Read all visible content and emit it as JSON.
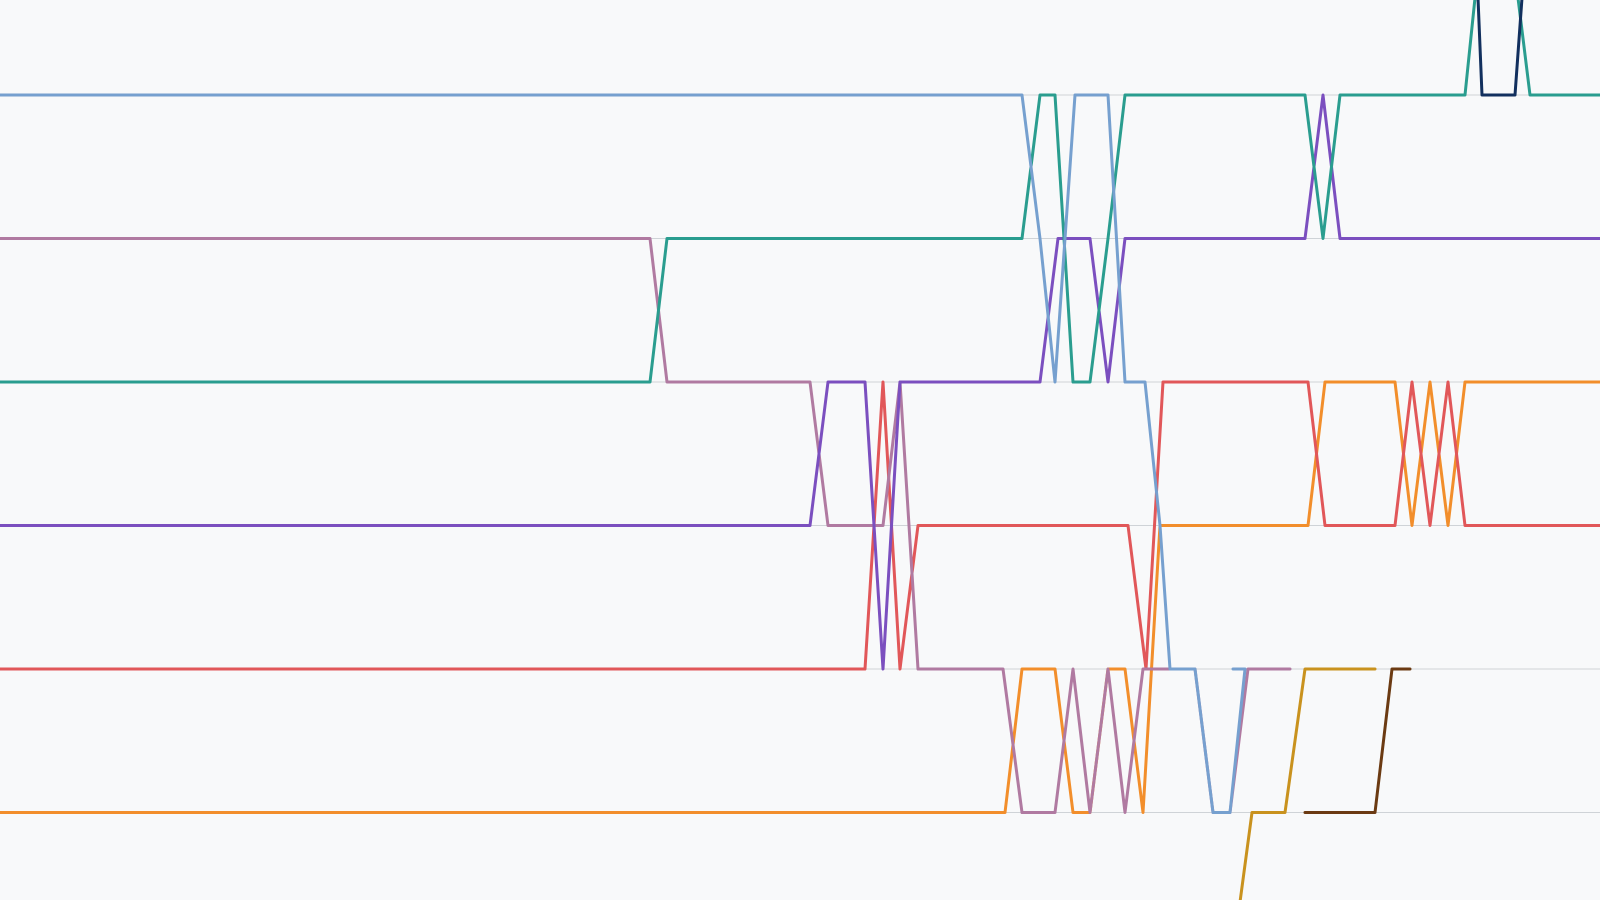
{
  "chart_data": {
    "type": "line",
    "subtype": "bump-chart",
    "x_range": [
      0,
      1600
    ],
    "y_axis": {
      "reversed": true,
      "visible_ranks": [
        1,
        2,
        3,
        4,
        5,
        6,
        7
      ]
    },
    "ylim": [
      0.33,
      7.6
    ],
    "grid": true,
    "legend": "none",
    "title": "",
    "xlabel": "",
    "ylabel": "",
    "series": [
      {
        "color": "#f28e2b",
        "points": [
          [
            0,
            7
          ],
          [
            1005,
            7
          ],
          [
            1022,
            6
          ],
          [
            1055,
            6
          ],
          [
            1073,
            7
          ],
          [
            1090,
            7
          ],
          [
            1108,
            6
          ],
          [
            1125,
            6
          ],
          [
            1143,
            7
          ],
          [
            1160,
            5
          ],
          [
            1308,
            5
          ],
          [
            1325,
            4
          ],
          [
            1395,
            4
          ],
          [
            1412,
            5
          ],
          [
            1430,
            4
          ],
          [
            1448,
            5
          ],
          [
            1465,
            4
          ],
          [
            1600,
            4
          ]
        ]
      },
      {
        "color": "#e15759",
        "points": [
          [
            0,
            6
          ],
          [
            865,
            6
          ],
          [
            883,
            4
          ],
          [
            900,
            6
          ],
          [
            918,
            5
          ],
          [
            1128,
            5
          ],
          [
            1146,
            6
          ],
          [
            1163,
            4
          ],
          [
            1308,
            4
          ],
          [
            1325,
            5
          ],
          [
            1395,
            5
          ],
          [
            1412,
            4
          ],
          [
            1430,
            5
          ],
          [
            1448,
            4
          ],
          [
            1465,
            5
          ],
          [
            1600,
            5
          ]
        ]
      },
      {
        "color": "#b07aa1",
        "points": [
          [
            0,
            3
          ],
          [
            650,
            3
          ],
          [
            667,
            4
          ],
          [
            810,
            4
          ],
          [
            828,
            5
          ],
          [
            883,
            5
          ],
          [
            900,
            4
          ],
          [
            918,
            6
          ],
          [
            1003,
            6
          ],
          [
            1022,
            7
          ],
          [
            1055,
            7
          ],
          [
            1073,
            6
          ],
          [
            1090,
            7
          ],
          [
            1108,
            6
          ],
          [
            1125,
            7
          ],
          [
            1143,
            6
          ],
          [
            1195,
            6
          ],
          [
            1213,
            7
          ],
          [
            1230,
            7
          ],
          [
            1248,
            6
          ],
          [
            1290,
            6
          ]
        ]
      },
      {
        "color": "#7b4fbf",
        "points": [
          [
            0,
            5
          ],
          [
            810,
            5
          ],
          [
            828,
            4
          ],
          [
            865,
            4
          ],
          [
            883,
            6
          ],
          [
            900,
            4
          ],
          [
            918,
            4
          ],
          [
            1040,
            4
          ],
          [
            1058,
            3
          ],
          [
            1090,
            3
          ],
          [
            1108,
            4
          ],
          [
            1125,
            3
          ],
          [
            1305,
            3
          ],
          [
            1323,
            2
          ],
          [
            1340,
            3
          ],
          [
            1600,
            3
          ]
        ]
      },
      {
        "color": "#2a9d8f",
        "points": [
          [
            0,
            4
          ],
          [
            650,
            4
          ],
          [
            667,
            3
          ],
          [
            1022,
            3
          ],
          [
            1040,
            2
          ],
          [
            1055,
            2
          ],
          [
            1073,
            4
          ],
          [
            1090,
            4
          ],
          [
            1108,
            3
          ],
          [
            1125,
            2
          ],
          [
            1305,
            2
          ],
          [
            1323,
            3
          ],
          [
            1340,
            2
          ],
          [
            1465,
            2
          ],
          [
            1475,
            1
          ],
          [
            1518,
            1
          ],
          [
            1530,
            2
          ],
          [
            1600,
            2
          ]
        ]
      },
      {
        "color": "#76a0cf",
        "points": [
          [
            0,
            2
          ],
          [
            1022,
            2
          ],
          [
            1040,
            3
          ],
          [
            1055,
            4
          ],
          [
            1075,
            2
          ],
          [
            1108,
            2
          ],
          [
            1125,
            4
          ],
          [
            1145,
            4
          ],
          [
            1160,
            5
          ],
          [
            1170,
            6
          ],
          [
            1195,
            6
          ],
          [
            1213,
            7
          ],
          [
            1230,
            7
          ],
          [
            1245,
            6
          ],
          [
            1233,
            6
          ]
        ]
      },
      {
        "color": "#12305e",
        "points": [
          [
            1465,
            1
          ],
          [
            1475,
            0.33
          ],
          [
            1478,
            0.33
          ],
          [
            1482,
            2
          ],
          [
            1515,
            2
          ],
          [
            1522,
            0.33
          ],
          [
            1525,
            0.33
          ]
        ]
      },
      {
        "color": "#c9921e",
        "points": [
          [
            1240,
            8
          ],
          [
            1252,
            7
          ],
          [
            1285,
            7
          ],
          [
            1305,
            6
          ],
          [
            1375,
            6
          ]
        ]
      },
      {
        "color": "#6b3a12",
        "points": [
          [
            1305,
            7
          ],
          [
            1375,
            7
          ],
          [
            1392,
            6
          ],
          [
            1410,
            6
          ]
        ]
      }
    ]
  }
}
